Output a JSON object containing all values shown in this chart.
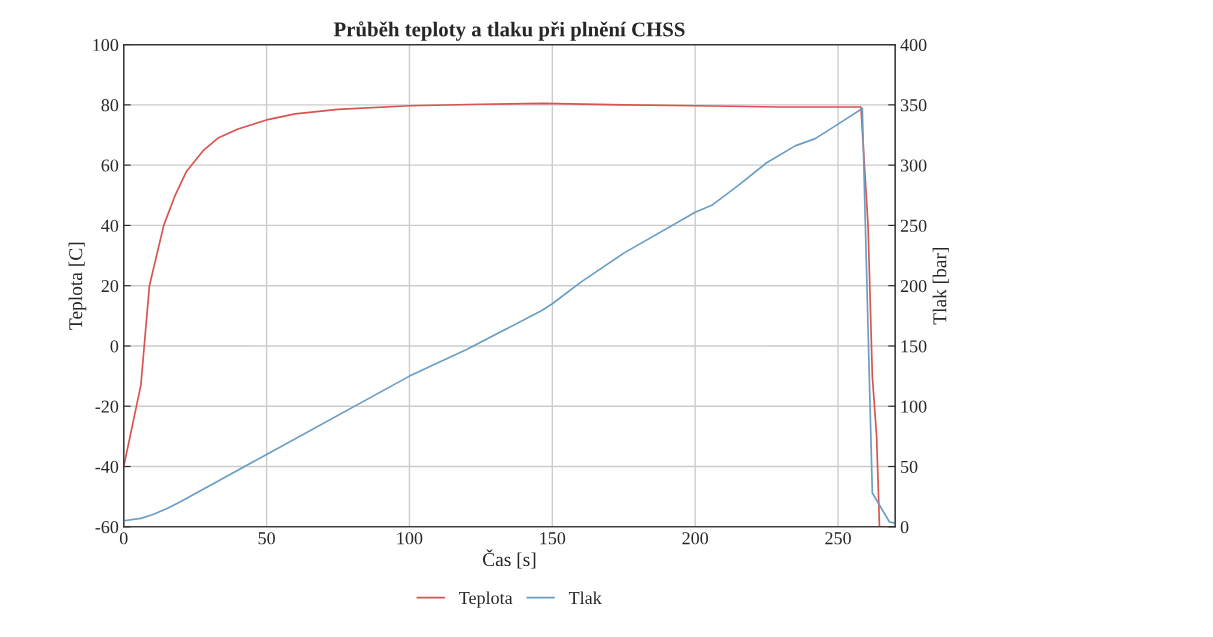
{
  "chart_data": {
    "type": "line",
    "title": "Průběh teploty a tlaku při plnění CHSS",
    "xlabel": "Čas [s]",
    "ylabel": "Teplota [C]",
    "y2label": "Tlak [bar]",
    "xlim": [
      0,
      270
    ],
    "xticks": [
      0,
      50,
      100,
      150,
      200,
      250
    ],
    "ylim": [
      -60,
      100
    ],
    "yticks": [
      -60,
      -40,
      -20,
      0,
      20,
      40,
      60,
      80,
      100
    ],
    "y2lim": [
      0,
      400
    ],
    "y2ticks": [
      0,
      50,
      100,
      150,
      200,
      250,
      300,
      350,
      400
    ],
    "grid": true,
    "legend": "bottom",
    "marker": "none",
    "line_style": "solid",
    "series": [
      {
        "name": "Teplota",
        "color": "#d9534f",
        "x": [
          0,
          6,
          9,
          14,
          18,
          22,
          28,
          33,
          40,
          50,
          60,
          75,
          100,
          125,
          147,
          175,
          200,
          230,
          258,
          260.5,
          262,
          263.5,
          264.5
        ],
        "values": [
          -40,
          -13,
          20,
          40,
          50,
          58,
          65,
          69,
          72,
          75,
          77,
          78.5,
          79.7,
          80.2,
          80.5,
          80,
          79.7,
          79.3,
          79.3,
          40,
          -10,
          -30,
          -60
        ]
      },
      {
        "name": "Tlak",
        "color": "#6a9ec4",
        "axis": "y2",
        "x": [
          0,
          6,
          10,
          15,
          20,
          50,
          100,
          120,
          146,
          150,
          160,
          175,
          200,
          206,
          215,
          225,
          235,
          242,
          250,
          258.5,
          262,
          268,
          270
        ],
        "values": [
          5,
          7,
          10,
          15,
          21,
          60,
          125,
          147,
          179,
          185,
          203,
          227,
          261,
          267,
          283,
          302,
          316,
          322,
          334,
          347,
          28,
          4,
          3
        ]
      }
    ]
  }
}
